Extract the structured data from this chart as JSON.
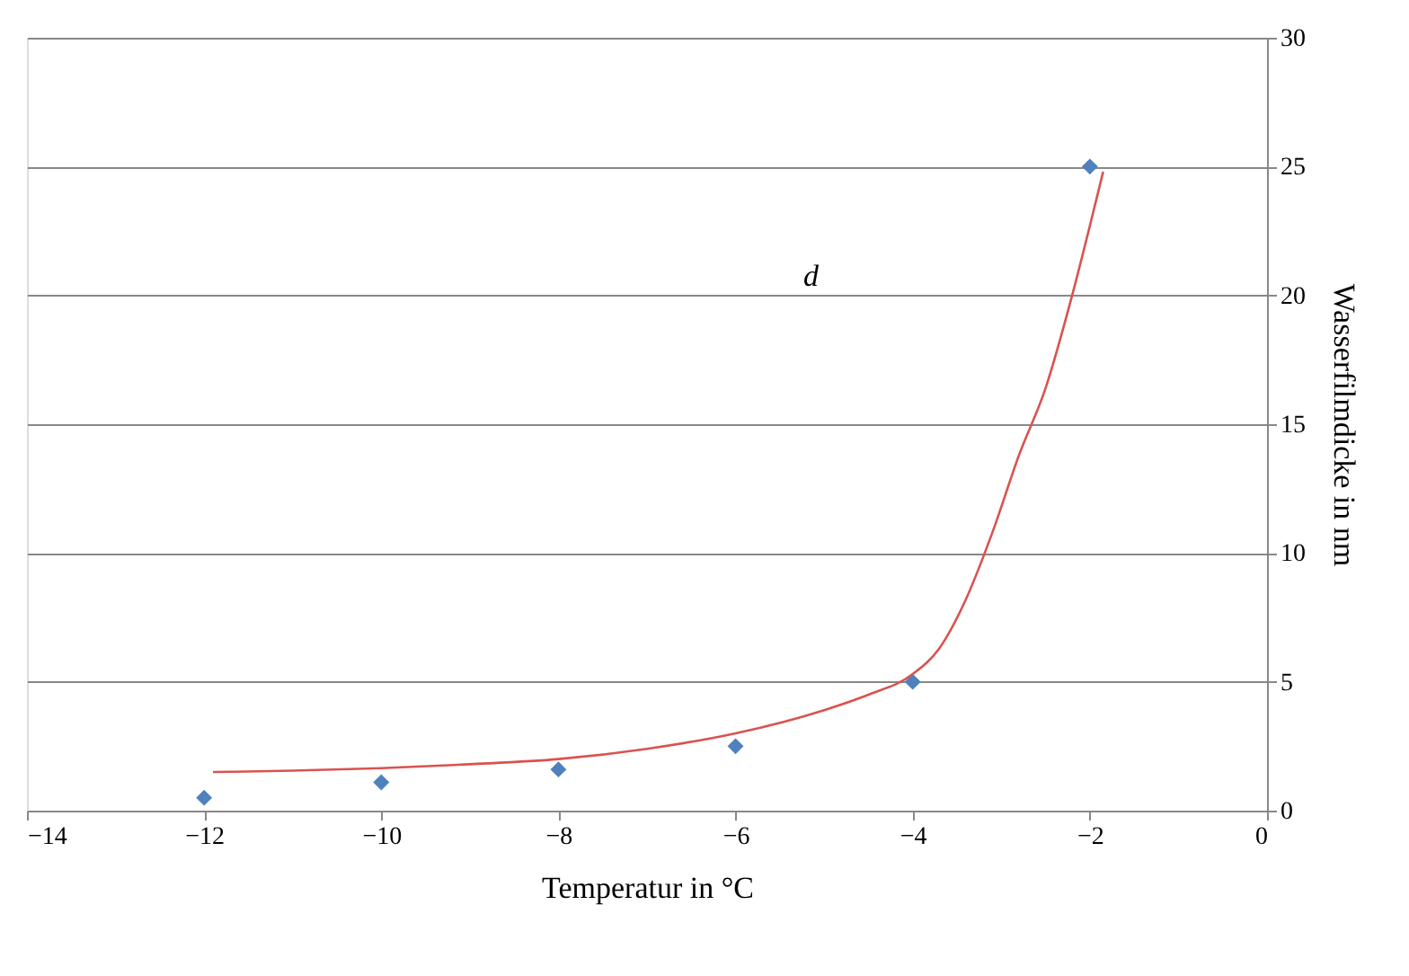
{
  "chart_data": {
    "type": "scatter",
    "xlabel": "Temperatur  in °C",
    "ylabel": "Wasserfilmdicke  in nm",
    "xlim": [
      -14,
      0
    ],
    "xticks": [
      -14,
      -12,
      -10,
      -8,
      -6,
      -4,
      -2,
      0
    ],
    "ylim": [
      0,
      30
    ],
    "yticks": [
      0,
      5,
      10,
      15,
      20,
      25,
      30
    ],
    "grid": "y",
    "annotations": [
      "d"
    ],
    "series": [
      {
        "marker": "diamond",
        "color": "#4f81bd",
        "x": [
          -12,
          -10,
          -8,
          -6,
          -4,
          -2
        ],
        "values": [
          0.5,
          1.1,
          1.6,
          2.5,
          5,
          25
        ]
      },
      {
        "type": "line",
        "marker": "none",
        "line_style": "solid",
        "color": "#d9534f",
        "x": [
          -11.9,
          -11,
          -10,
          -9,
          -8,
          -7,
          -6,
          -5,
          -4.5,
          -4,
          -3.7,
          -3.4,
          -3.1,
          -2.8,
          -2.5,
          -2.2,
          -2,
          -1.85
        ],
        "values": [
          1.5,
          1.55,
          1.65,
          1.8,
          2.0,
          2.4,
          3.0,
          3.9,
          4.5,
          5.3,
          6.3,
          8.2,
          10.8,
          13.8,
          16.4,
          20.0,
          22.7,
          24.8
        ]
      }
    ]
  }
}
